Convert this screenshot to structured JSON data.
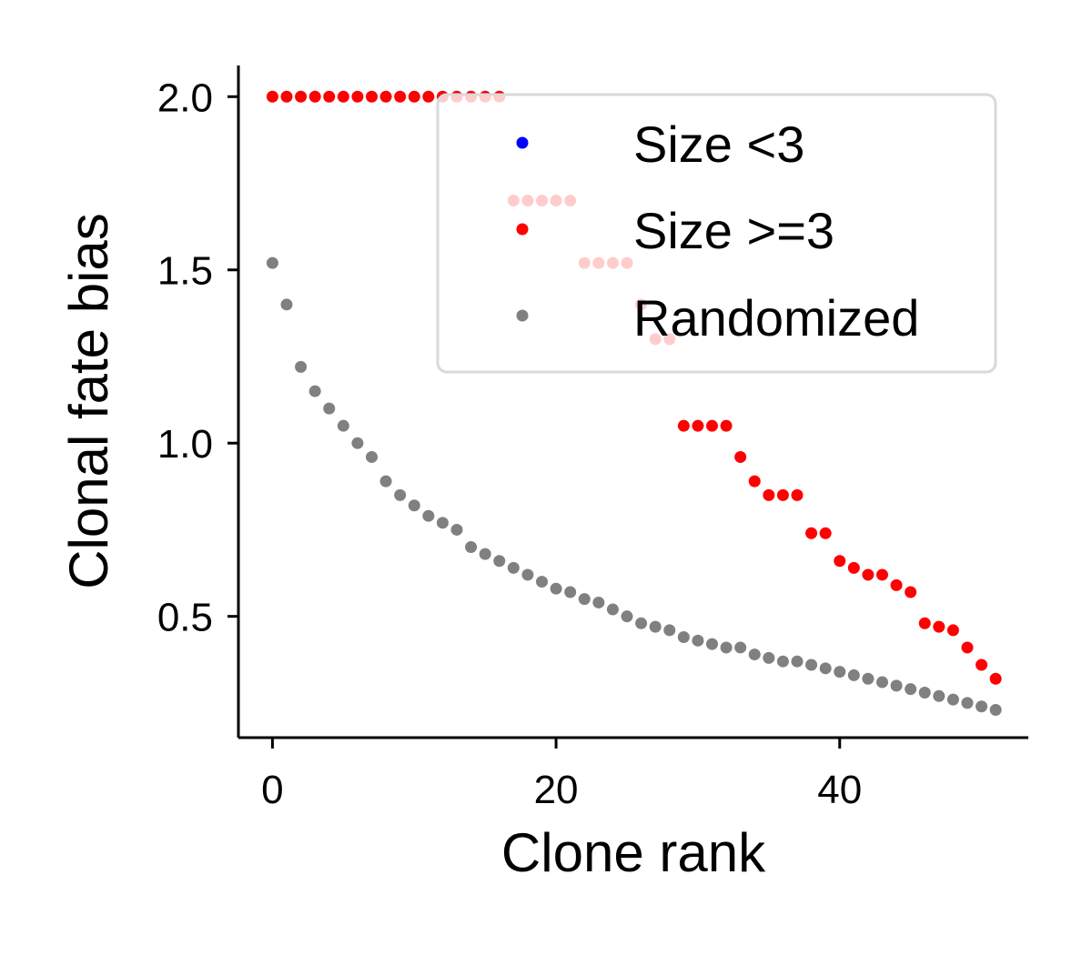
{
  "chart_data": {
    "type": "scatter",
    "title": "",
    "xlabel": "Clone rank",
    "ylabel": "Clonal fate bias",
    "xlim": [
      -2.4,
      53.3
    ],
    "ylim": [
      0.15,
      2.09
    ],
    "xticks": [
      0,
      20,
      40
    ],
    "yticks": [
      0.5,
      1.0,
      1.5,
      2.0
    ],
    "xtick_labels": [
      "0",
      "20",
      "40"
    ],
    "ytick_labels": [
      "0.5",
      "1.0",
      "1.5",
      "2.0"
    ],
    "grid": false,
    "legend_position": "top-right",
    "series": [
      {
        "name": "Size <3",
        "color": "#0000ff",
        "x": [],
        "y": []
      },
      {
        "name": "Size >=3",
        "color": "#ff0000",
        "x": [
          0,
          1,
          2,
          3,
          4,
          5,
          6,
          7,
          8,
          9,
          10,
          11,
          12,
          13,
          14,
          15,
          16,
          17,
          18,
          19,
          20,
          21,
          22,
          23,
          24,
          25,
          26,
          27,
          28,
          29,
          30,
          31,
          32,
          33,
          34,
          35,
          36,
          37,
          38,
          39,
          40,
          41,
          42,
          43,
          44,
          45,
          46,
          47,
          48,
          49,
          50,
          51
        ],
        "y": [
          2.0,
          2.0,
          2.0,
          2.0,
          2.0,
          2.0,
          2.0,
          2.0,
          2.0,
          2.0,
          2.0,
          2.0,
          2.0,
          2.0,
          2.0,
          2.0,
          2.0,
          1.7,
          1.7,
          1.7,
          1.7,
          1.7,
          1.52,
          1.52,
          1.52,
          1.52,
          1.4,
          1.3,
          1.3,
          1.05,
          1.05,
          1.05,
          1.05,
          0.96,
          0.89,
          0.85,
          0.85,
          0.85,
          0.74,
          0.74,
          0.66,
          0.64,
          0.62,
          0.62,
          0.59,
          0.57,
          0.48,
          0.47,
          0.46,
          0.41,
          0.36,
          0.32
        ]
      },
      {
        "name": "Randomized",
        "color": "#808080",
        "x": [
          0,
          1,
          2,
          3,
          4,
          5,
          6,
          7,
          8,
          9,
          10,
          11,
          12,
          13,
          14,
          15,
          16,
          17,
          18,
          19,
          20,
          21,
          22,
          23,
          24,
          25,
          26,
          27,
          28,
          29,
          30,
          31,
          32,
          33,
          34,
          35,
          36,
          37,
          38,
          39,
          40,
          41,
          42,
          43,
          44,
          45,
          46,
          47,
          48,
          49,
          50,
          51
        ],
        "y": [
          1.52,
          1.4,
          1.22,
          1.15,
          1.1,
          1.05,
          1.0,
          0.96,
          0.89,
          0.85,
          0.82,
          0.79,
          0.77,
          0.75,
          0.7,
          0.68,
          0.66,
          0.64,
          0.62,
          0.6,
          0.58,
          0.57,
          0.55,
          0.54,
          0.52,
          0.5,
          0.48,
          0.47,
          0.46,
          0.44,
          0.43,
          0.42,
          0.41,
          0.41,
          0.39,
          0.38,
          0.37,
          0.37,
          0.36,
          0.35,
          0.34,
          0.33,
          0.32,
          0.31,
          0.3,
          0.29,
          0.28,
          0.27,
          0.26,
          0.25,
          0.24,
          0.23
        ]
      }
    ]
  },
  "legend": {
    "items": [
      {
        "label": "Size <3",
        "color": "#0000ff"
      },
      {
        "label": "Size >=3",
        "color": "#ff0000"
      },
      {
        "label": "Randomized",
        "color": "#808080"
      }
    ]
  }
}
